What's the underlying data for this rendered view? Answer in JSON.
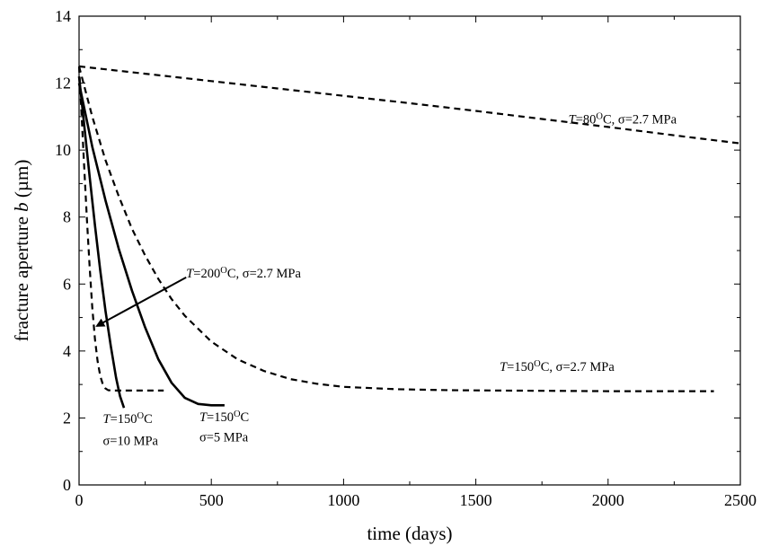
{
  "chart_data": {
    "type": "line",
    "title": "",
    "xlabel": "time (days)",
    "ylabel": "fracture aperture b (µm)",
    "xlim": [
      0,
      2500
    ],
    "ylim": [
      0,
      14
    ],
    "x_ticks": [
      "0",
      "500",
      "1000",
      "1500",
      "2000",
      "2500"
    ],
    "y_ticks": [
      "0",
      "2",
      "4",
      "6",
      "8",
      "10",
      "12",
      "14"
    ],
    "grid": false,
    "legend": "none",
    "series": [
      {
        "style": "dashed",
        "color": "#000000",
        "points": [
          [
            0,
            12.5
          ],
          [
            250,
            12.28
          ],
          [
            500,
            12.06
          ],
          [
            750,
            11.84
          ],
          [
            1000,
            11.62
          ],
          [
            1250,
            11.4
          ],
          [
            1500,
            11.17
          ],
          [
            1750,
            10.93
          ],
          [
            2000,
            10.69
          ],
          [
            2250,
            10.44
          ],
          [
            2500,
            10.2
          ]
        ]
      },
      {
        "style": "dashed",
        "color": "#000000",
        "points": [
          [
            0,
            12.5
          ],
          [
            50,
            11.0
          ],
          [
            100,
            9.7
          ],
          [
            150,
            8.62
          ],
          [
            200,
            7.65
          ],
          [
            250,
            6.85
          ],
          [
            300,
            6.15
          ],
          [
            350,
            5.55
          ],
          [
            400,
            5.05
          ],
          [
            500,
            4.28
          ],
          [
            600,
            3.75
          ],
          [
            700,
            3.4
          ],
          [
            800,
            3.16
          ],
          [
            900,
            3.02
          ],
          [
            1000,
            2.93
          ],
          [
            1200,
            2.86
          ],
          [
            1400,
            2.83
          ],
          [
            1600,
            2.82
          ],
          [
            2000,
            2.8
          ],
          [
            2400,
            2.8
          ]
        ]
      },
      {
        "style": "dashed",
        "color": "#000000",
        "points": [
          [
            0,
            12.5
          ],
          [
            10,
            11.0
          ],
          [
            20,
            9.4
          ],
          [
            30,
            7.9
          ],
          [
            40,
            6.5
          ],
          [
            50,
            5.3
          ],
          [
            60,
            4.35
          ],
          [
            70,
            3.7
          ],
          [
            80,
            3.25
          ],
          [
            90,
            3.0
          ],
          [
            100,
            2.88
          ],
          [
            110,
            2.83
          ],
          [
            130,
            2.82
          ],
          [
            200,
            2.82
          ],
          [
            320,
            2.82
          ]
        ]
      },
      {
        "style": "solid",
        "color": "#000000",
        "points": [
          [
            0,
            12.2
          ],
          [
            20,
            10.7
          ],
          [
            40,
            9.2
          ],
          [
            60,
            7.75
          ],
          [
            80,
            6.4
          ],
          [
            100,
            5.2
          ],
          [
            120,
            4.15
          ],
          [
            140,
            3.2
          ],
          [
            155,
            2.65
          ],
          [
            170,
            2.3
          ]
        ]
      },
      {
        "style": "solid",
        "color": "#000000",
        "points": [
          [
            0,
            12.0
          ],
          [
            50,
            10.1
          ],
          [
            100,
            8.5
          ],
          [
            150,
            7.05
          ],
          [
            200,
            5.8
          ],
          [
            250,
            4.7
          ],
          [
            300,
            3.75
          ],
          [
            350,
            3.05
          ],
          [
            400,
            2.6
          ],
          [
            450,
            2.42
          ],
          [
            500,
            2.38
          ],
          [
            550,
            2.38
          ]
        ]
      }
    ],
    "annotations": [
      {
        "text": "T=80OC, σ=2.7 MPa",
        "x": 1850,
        "y": 10.8
      },
      {
        "text": "T=200OC, σ=2.7 MPa",
        "x": 405,
        "y": 6.2
      },
      {
        "text": "T=150OC, σ=2.7 MPa",
        "x": 1590,
        "y": 3.4
      },
      {
        "text": "T=150OC",
        "x": 90,
        "y": 1.85
      },
      {
        "text": "σ=10 MPa",
        "x": 90,
        "y": 1.2
      },
      {
        "text": "T=150OC",
        "x": 455,
        "y": 1.9
      },
      {
        "text": "σ=5 MPa",
        "x": 455,
        "y": 1.3
      }
    ],
    "arrow": {
      "from": [
        405,
        6.2
      ],
      "to": [
        68,
        4.75
      ]
    }
  }
}
